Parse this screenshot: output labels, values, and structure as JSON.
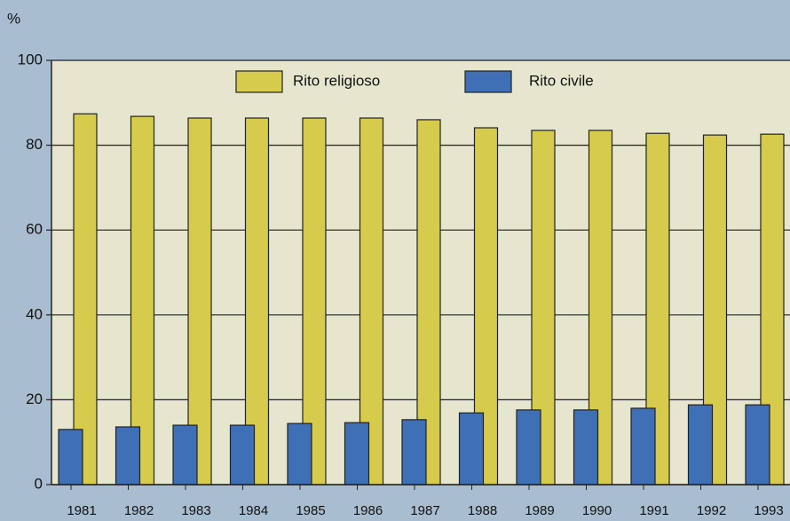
{
  "chart_data": {
    "type": "bar",
    "ylabel": "%",
    "categories": [
      "1981",
      "1982",
      "1983",
      "1984",
      "1985",
      "1986",
      "1987",
      "1988",
      "1989",
      "1990",
      "1991",
      "1992",
      "1993"
    ],
    "series": [
      {
        "name": "Rito religioso",
        "color": "#d6cb4c",
        "values": [
          87.4,
          86.8,
          86.4,
          86.4,
          86.4,
          86.4,
          86.0,
          84.1,
          83.5,
          83.5,
          82.8,
          82.4,
          82.6
        ]
      },
      {
        "name": "Rito civile",
        "color": "#3f6fb5",
        "values": [
          13.0,
          13.6,
          14.0,
          14.0,
          14.4,
          14.6,
          15.3,
          16.9,
          17.6,
          17.6,
          18.0,
          18.8,
          18.8
        ]
      }
    ],
    "ylim": [
      0,
      100
    ],
    "yticks": [
      0,
      20,
      40,
      60,
      80,
      100
    ],
    "grid": true
  }
}
